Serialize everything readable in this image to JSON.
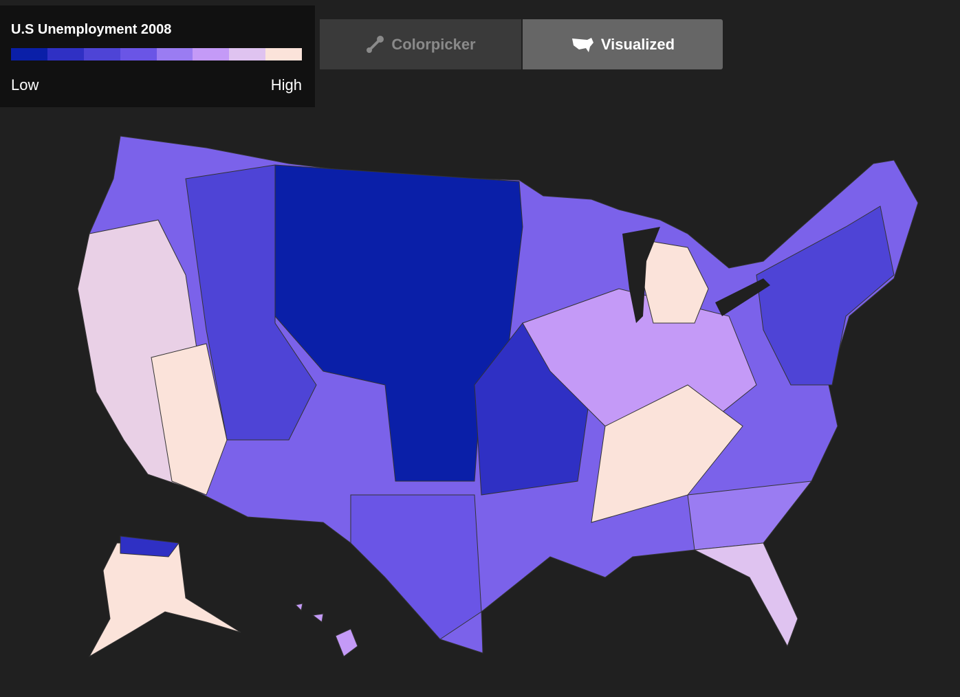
{
  "legend": {
    "title": "U.S Unemployment 2008",
    "colors": [
      "#0a1fa8",
      "#2f30c4",
      "#4e44d6",
      "#6a55e6",
      "#9a7cf2",
      "#c49af7",
      "#dfc3f0",
      "#fbe3da"
    ],
    "low": "Low",
    "high": "High"
  },
  "tabs": [
    {
      "label": "Colorpicker"
    },
    {
      "label": "Visualized"
    }
  ]
}
